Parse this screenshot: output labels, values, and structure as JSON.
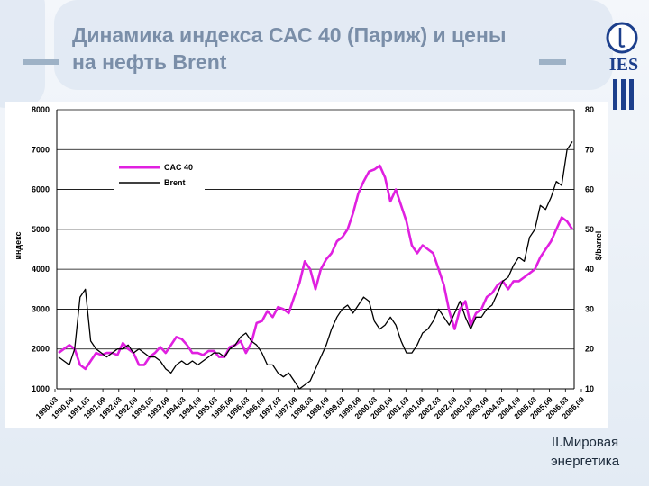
{
  "slide": {
    "title_line1": "Динамика индекса САС 40 (Париж) и цены",
    "title_line2": "на нефть Brent",
    "footer_line1": "II.Мировая",
    "footer_line2": "энергетика",
    "logo_text": "IES"
  },
  "colors": {
    "cac": "#e020e0",
    "brent": "#000000",
    "background": "#eef3f9",
    "title": "#7a8ea8"
  },
  "chart_data": {
    "type": "line",
    "title": "",
    "left_axis_label": "индекс",
    "right_axis_label": "$/barrel",
    "ylim_left": [
      1000,
      8000
    ],
    "ylim_right": [
      10,
      80
    ],
    "left_ticks": [
      "1000",
      "2000",
      "3000",
      "4000",
      "5000",
      "6000",
      "7000",
      "8000"
    ],
    "right_ticks": [
      "10",
      "20",
      "30",
      "40",
      "50",
      "60",
      "70",
      "80"
    ],
    "x_ticks": [
      "1990,03",
      "1990,09",
      "1991,03",
      "1991,09",
      "1992,03",
      "1992,09",
      "1993,03",
      "1993,09",
      "1994,03",
      "1994,09",
      "1995,03",
      "1995,09",
      "1996,03",
      "1996,09",
      "1997,03",
      "1997,09",
      "1998,03",
      "1998,09",
      "1999,03",
      "1999,09",
      "2000,03",
      "2000,09",
      "2001,03",
      "2001,09",
      "2002,03",
      "2002,09",
      "2003,03",
      "2003,09",
      "2004,03",
      "2004,09",
      "2005,03",
      "2005,09",
      "2006,03",
      "2006,09"
    ],
    "legend_position": "upper-left",
    "grid": "horizontal",
    "series": [
      {
        "name": "CAC 40",
        "axis": "left",
        "color": "#e020e0",
        "values": [
          1900,
          2000,
          2100,
          2000,
          1600,
          1500,
          1700,
          1900,
          1850,
          1900,
          1900,
          1850,
          2150,
          2000,
          1900,
          1600,
          1600,
          1800,
          1900,
          2050,
          1900,
          2100,
          2300,
          2250,
          2100,
          1900,
          1900,
          1850,
          1950,
          1950,
          1800,
          1800,
          2050,
          2100,
          2200,
          1900,
          2150,
          2650,
          2700,
          2950,
          2800,
          3050,
          3000,
          2900,
          3300,
          3650,
          4200,
          4000,
          3500,
          4000,
          4250,
          4400,
          4700,
          4800,
          5000,
          5400,
          5900,
          6200,
          6450,
          6500,
          6600,
          6300,
          5700,
          6000,
          5600,
          5200,
          4600,
          4400,
          4600,
          4500,
          4400,
          4000,
          3600,
          2950,
          2500,
          3000,
          3200,
          2600,
          2900,
          3000,
          3300,
          3400,
          3600,
          3700,
          3500,
          3700,
          3700,
          3800,
          3900,
          4000,
          4300,
          4500,
          4700,
          5000,
          5300,
          5200,
          5000
        ]
      },
      {
        "name": "Brent",
        "axis": "right",
        "color": "#000000",
        "values": [
          18,
          17,
          16,
          20,
          33,
          35,
          22,
          20,
          19,
          18,
          19,
          20,
          20,
          21,
          19,
          20,
          19,
          18,
          18,
          17,
          15,
          14,
          16,
          17,
          16,
          17,
          16,
          17,
          18,
          19,
          19,
          18,
          20,
          21,
          23,
          24,
          22,
          21,
          19,
          16,
          16,
          14,
          13,
          14,
          12,
          10,
          11,
          12,
          15,
          18,
          21,
          25,
          28,
          30,
          31,
          29,
          31,
          33,
          32,
          27,
          25,
          26,
          28,
          26,
          22,
          19,
          19,
          21,
          24,
          25,
          27,
          30,
          28,
          26,
          29,
          32,
          28,
          25,
          28,
          28,
          30,
          31,
          34,
          37,
          38,
          41,
          43,
          42,
          48,
          50,
          56,
          55,
          58,
          62,
          61,
          70,
          72
        ]
      }
    ]
  }
}
